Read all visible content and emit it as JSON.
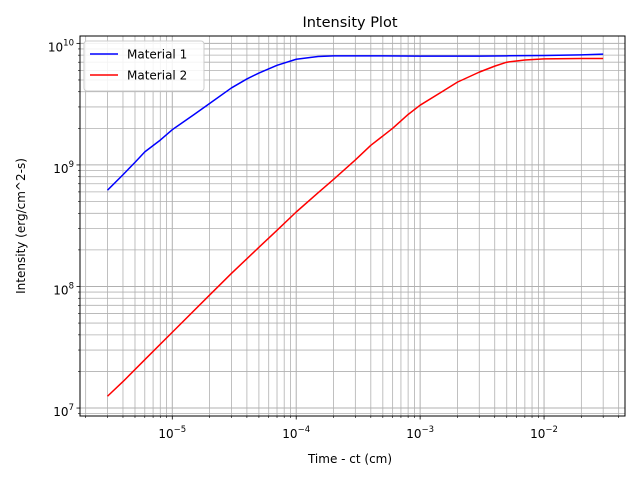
{
  "chart_data": {
    "type": "line",
    "title": "Intensity Plot",
    "xlabel": "Time - ct (cm)",
    "ylabel": "Intensity (erg/cm^2-s)",
    "xscale": "log",
    "yscale": "log",
    "xlim": [
      1.8e-06,
      0.045
    ],
    "ylim": [
      8600000.0,
      11500000000.0
    ],
    "grid": "major and minor",
    "legend_position": "top-left",
    "x_ticks": [
      {
        "base": "10",
        "exp": "−5",
        "value": 1e-05
      },
      {
        "base": "10",
        "exp": "−4",
        "value": 0.0001
      },
      {
        "base": "10",
        "exp": "−3",
        "value": 0.001
      },
      {
        "base": "10",
        "exp": "−2",
        "value": 0.01
      }
    ],
    "y_ticks": [
      {
        "base": "10",
        "exp": "7",
        "value": 10000000.0
      },
      {
        "base": "10",
        "exp": "8",
        "value": 100000000.0
      },
      {
        "base": "10",
        "exp": "9",
        "value": 1000000000.0
      },
      {
        "base": "10",
        "exp": "10",
        "value": 10000000000.0
      }
    ],
    "series": [
      {
        "name": "Material 1",
        "color": "#0000ff",
        "points": [
          [
            3e-06,
            620000000.0
          ],
          [
            4e-06,
            830000000.0
          ],
          [
            5e-06,
            1050000000.0
          ],
          [
            6e-06,
            1280000000.0
          ],
          [
            8e-06,
            1600000000.0
          ],
          [
            1e-05,
            1950000000.0
          ],
          [
            1.5e-05,
            2600000000.0
          ],
          [
            2e-05,
            3200000000.0
          ],
          [
            3e-05,
            4300000000.0
          ],
          [
            4e-05,
            5100000000.0
          ],
          [
            5e-05,
            5700000000.0
          ],
          [
            7e-05,
            6600000000.0
          ],
          [
            0.0001,
            7400000000.0
          ],
          [
            0.00015,
            7800000000.0
          ],
          [
            0.0002,
            7900000000.0
          ],
          [
            0.0005,
            7900000000.0
          ],
          [
            0.001,
            7850000000.0
          ],
          [
            0.003,
            7850000000.0
          ],
          [
            0.005,
            7900000000.0
          ],
          [
            0.01,
            7950000000.0
          ],
          [
            0.015,
            8000000000.0
          ],
          [
            0.02,
            8050000000.0
          ],
          [
            0.03,
            8150000000.0
          ]
        ]
      },
      {
        "name": "Material 2",
        "color": "#ff0000",
        "points": [
          [
            3e-06,
            12500000.0
          ],
          [
            4e-06,
            16500000.0
          ],
          [
            6e-06,
            25000000.0
          ],
          [
            1e-05,
            42000000.0
          ],
          [
            2e-05,
            85000000.0
          ],
          [
            3e-05,
            128000000.0
          ],
          [
            5e-05,
            210000000.0
          ],
          [
            7e-05,
            290000000.0
          ],
          [
            0.0001,
            410000000.0
          ],
          [
            0.00015,
            590000000.0
          ],
          [
            0.0002,
            760000000.0
          ],
          [
            0.0003,
            1100000000.0
          ],
          [
            0.0004,
            1450000000.0
          ],
          [
            0.0006,
            2000000000.0
          ],
          [
            0.0008,
            2600000000.0
          ],
          [
            0.001,
            3100000000.0
          ],
          [
            0.0015,
            4000000000.0
          ],
          [
            0.002,
            4800000000.0
          ],
          [
            0.003,
            5800000000.0
          ],
          [
            0.004,
            6500000000.0
          ],
          [
            0.005,
            7000000000.0
          ],
          [
            0.007,
            7300000000.0
          ],
          [
            0.01,
            7450000000.0
          ],
          [
            0.02,
            7500000000.0
          ],
          [
            0.03,
            7500000000.0
          ]
        ]
      }
    ]
  }
}
